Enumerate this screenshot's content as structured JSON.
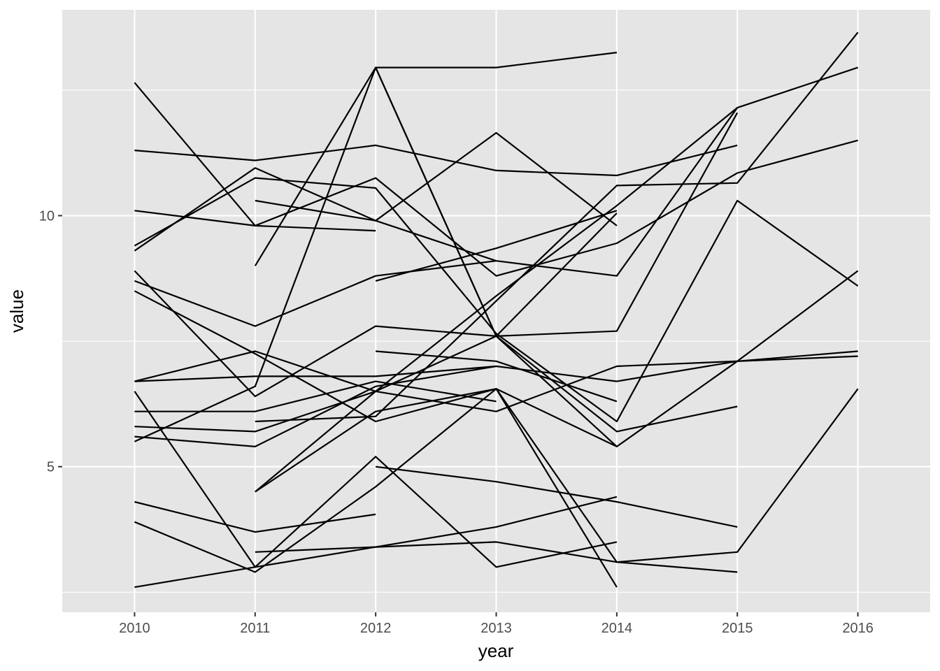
{
  "chart_data": {
    "type": "line",
    "xlabel": "year",
    "ylabel": "value",
    "x": [
      2010,
      2011,
      2012,
      2013,
      2014,
      2015,
      2016
    ],
    "x_ticks": [
      "2010",
      "2011",
      "2012",
      "2013",
      "2014",
      "2015",
      "2016"
    ],
    "y_ticks": [
      5,
      10
    ],
    "y_tick_labels": [
      "5",
      "10"
    ],
    "xlim": [
      2009.4,
      2016.6
    ],
    "ylim": [
      2.1,
      14.1
    ],
    "grid": true,
    "legend": "none",
    "colors": {
      "panel": "#e5e5e5",
      "grid": "#ffffff",
      "line": "#000000",
      "tick_text": "#4d4d4d"
    },
    "series": [
      {
        "values": [
          [
            2012,
            12.95
          ],
          [
            2013,
            12.95
          ],
          [
            2014,
            13.25
          ]
        ]
      },
      {
        "values": [
          [
            2010,
            11.3
          ],
          [
            2011,
            11.1
          ],
          [
            2012,
            11.4
          ],
          [
            2013,
            10.9
          ],
          [
            2014,
            10.8
          ],
          [
            2015,
            11.4
          ]
        ]
      },
      {
        "values": [
          [
            2010,
            12.65
          ],
          [
            2011,
            9.8
          ],
          [
            2012,
            10.75
          ],
          [
            2013,
            8.8
          ],
          [
            2014,
            9.45
          ],
          [
            2015,
            10.85
          ],
          [
            2016,
            11.5
          ]
        ]
      },
      {
        "values": [
          [
            2010,
            10.1
          ],
          [
            2011,
            9.8
          ],
          [
            2012,
            9.7
          ]
        ]
      },
      {
        "values": [
          [
            2010,
            9.4
          ],
          [
            2011,
            10.75
          ],
          [
            2012,
            10.55
          ],
          [
            2013,
            7.65
          ],
          [
            2014,
            5.9
          ],
          [
            2015,
            10.3
          ],
          [
            2016,
            8.6
          ]
        ]
      },
      {
        "values": [
          [
            2010,
            9.3
          ],
          [
            2011,
            10.95
          ],
          [
            2012,
            9.9
          ],
          [
            2013,
            11.65
          ],
          [
            2014,
            9.8
          ]
        ]
      },
      {
        "values": [
          [
            2011,
            9.0
          ],
          [
            2012,
            12.95
          ],
          [
            2013,
            7.6
          ],
          [
            2014,
            7.7
          ],
          [
            2015,
            12.05
          ]
        ]
      },
      {
        "values": [
          [
            2011,
            10.3
          ],
          [
            2012,
            9.9
          ],
          [
            2013,
            9.1
          ],
          [
            2014,
            8.8
          ],
          [
            2015,
            12.15
          ],
          [
            2016,
            12.95
          ]
        ]
      },
      {
        "values": [
          [
            2010,
            8.7
          ],
          [
            2011,
            7.8
          ],
          [
            2012,
            8.8
          ],
          [
            2013,
            9.1
          ]
        ]
      },
      {
        "values": [
          [
            2010,
            8.5
          ],
          [
            2011,
            7.25
          ],
          [
            2012,
            5.9
          ],
          [
            2013,
            6.55
          ],
          [
            2014,
            5.4
          ],
          [
            2015,
            7.1
          ],
          [
            2016,
            8.9
          ]
        ]
      },
      {
        "values": [
          [
            2010,
            8.9
          ],
          [
            2011,
            6.4
          ],
          [
            2012,
            7.8
          ],
          [
            2013,
            7.6
          ],
          [
            2014,
            5.7
          ],
          [
            2015,
            6.2
          ]
        ]
      },
      {
        "values": [
          [
            2012,
            8.7
          ],
          [
            2013,
            9.35
          ],
          [
            2014,
            10.1
          ]
        ]
      },
      {
        "values": [
          [
            2012,
            7.3
          ],
          [
            2013,
            7.1
          ],
          [
            2014,
            6.3
          ]
        ]
      },
      {
        "values": [
          [
            2010,
            6.7
          ],
          [
            2011,
            6.8
          ],
          [
            2012,
            6.8
          ],
          [
            2013,
            7.0
          ],
          [
            2014,
            6.7
          ],
          [
            2015,
            7.1
          ],
          [
            2016,
            7.3
          ]
        ]
      },
      {
        "values": [
          [
            2010,
            6.7
          ],
          [
            2011,
            7.3
          ],
          [
            2012,
            6.5
          ],
          [
            2013,
            6.1
          ],
          [
            2014,
            7.0
          ],
          [
            2016,
            7.2
          ]
        ]
      },
      {
        "values": [
          [
            2010,
            6.1
          ],
          [
            2011,
            6.1
          ],
          [
            2012,
            6.7
          ],
          [
            2013,
            6.3
          ]
        ]
      },
      {
        "values": [
          [
            2010,
            5.8
          ],
          [
            2011,
            5.7
          ],
          [
            2012,
            6.5
          ],
          [
            2013,
            8.4
          ],
          [
            2014,
            10.2
          ],
          [
            2015,
            12.15
          ]
        ]
      },
      {
        "values": [
          [
            2010,
            5.6
          ],
          [
            2011,
            5.4
          ],
          [
            2012,
            6.6
          ],
          [
            2013,
            7.0
          ]
        ]
      },
      {
        "values": [
          [
            2010,
            5.5
          ],
          [
            2011,
            6.6
          ],
          [
            2012,
            12.95
          ],
          [
            2013,
            7.6
          ],
          [
            2014,
            5.4
          ]
        ]
      },
      {
        "values": [
          [
            2011,
            5.9
          ],
          [
            2012,
            6.0
          ],
          [
            2013,
            8.3
          ],
          [
            2014,
            10.6
          ],
          [
            2015,
            10.65
          ],
          [
            2016,
            13.65
          ]
        ]
      },
      {
        "values": [
          [
            2011,
            4.5
          ],
          [
            2012,
            6.1
          ],
          [
            2013,
            6.55
          ],
          [
            2014,
            2.6
          ]
        ]
      },
      {
        "values": [
          [
            2011,
            4.5
          ],
          [
            2012,
            6.5
          ],
          [
            2013,
            7.6
          ],
          [
            2014,
            10.05
          ]
        ]
      },
      {
        "values": [
          [
            2010,
            6.5
          ],
          [
            2011,
            3.0
          ],
          [
            2012,
            5.2
          ],
          [
            2013,
            3.0
          ],
          [
            2014,
            3.5
          ]
        ]
      },
      {
        "values": [
          [
            2010,
            4.3
          ],
          [
            2011,
            3.7
          ],
          [
            2012,
            4.05
          ]
        ]
      },
      {
        "values": [
          [
            2010,
            3.9
          ],
          [
            2011,
            2.9
          ],
          [
            2012,
            4.6
          ],
          [
            2013,
            6.55
          ],
          [
            2014,
            3.1
          ],
          [
            2015,
            2.9
          ]
        ]
      },
      {
        "values": [
          [
            2011,
            3.3
          ],
          [
            2012,
            3.4
          ],
          [
            2013,
            3.5
          ],
          [
            2014,
            3.1
          ],
          [
            2015,
            3.3
          ],
          [
            2016,
            6.55
          ]
        ]
      },
      {
        "values": [
          [
            2012,
            5.0
          ],
          [
            2013,
            4.7
          ],
          [
            2014,
            4.3
          ],
          [
            2015,
            3.8
          ]
        ]
      },
      {
        "values": [
          [
            2010,
            2.6
          ],
          [
            2011,
            3.0
          ],
          [
            2012,
            3.4
          ],
          [
            2013,
            3.8
          ],
          [
            2014,
            4.4
          ]
        ]
      }
    ]
  }
}
